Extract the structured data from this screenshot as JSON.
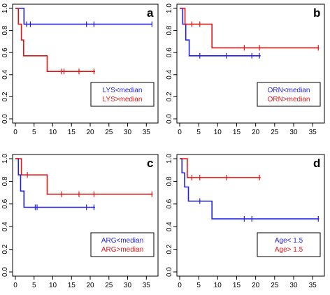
{
  "colors": {
    "blue": "#1f1fe6",
    "red": "#e01515",
    "axis": "#000000"
  },
  "chart_data": [
    {
      "panel": "a",
      "type": "line",
      "step": true,
      "xlim": [
        0,
        37
      ],
      "ylim": [
        0,
        1
      ],
      "x_ticks": [
        0,
        5,
        10,
        15,
        20,
        25,
        30,
        35
      ],
      "y_ticks": [
        0.0,
        0.2,
        0.4,
        0.6,
        0.8,
        1.0
      ],
      "legend_position": "bottom-right",
      "series": [
        {
          "name": "LYS<median",
          "color": "blue",
          "steps": [
            [
              0,
              1.0
            ],
            [
              2.3,
              0.857
            ],
            [
              36.5,
              0.857
            ]
          ],
          "censored": [
            [
              3,
              0.857
            ],
            [
              4,
              0.857
            ],
            [
              19,
              0.857
            ],
            [
              21,
              0.857
            ],
            [
              36.5,
              0.857
            ]
          ]
        },
        {
          "name": "LYS>median",
          "color": "red",
          "steps": [
            [
              0,
              1.0
            ],
            [
              0.8,
              0.857
            ],
            [
              1.6,
              0.714
            ],
            [
              2.2,
              0.571
            ],
            [
              8.5,
              0.429
            ],
            [
              21.3,
              0.429
            ]
          ],
          "censored": [
            [
              12.3,
              0.429
            ],
            [
              13,
              0.429
            ],
            [
              17,
              0.429
            ],
            [
              21,
              0.429
            ]
          ]
        }
      ]
    },
    {
      "panel": "b",
      "type": "line",
      "step": true,
      "xlim": [
        0,
        37
      ],
      "ylim": [
        0,
        1
      ],
      "x_ticks": [
        0,
        5,
        10,
        15,
        20,
        25,
        30,
        35
      ],
      "y_ticks": [
        0.0,
        0.2,
        0.4,
        0.6,
        0.8,
        1.0
      ],
      "legend_position": "bottom-right",
      "series": [
        {
          "name": "ORN<median",
          "color": "blue",
          "steps": [
            [
              0,
              1.0
            ],
            [
              0.8,
              0.857
            ],
            [
              1.6,
              0.714
            ],
            [
              2.5,
              0.571
            ],
            [
              21.3,
              0.571
            ]
          ],
          "censored": [
            [
              5.3,
              0.571
            ],
            [
              12.3,
              0.571
            ],
            [
              19,
              0.571
            ],
            [
              21,
              0.571
            ]
          ]
        },
        {
          "name": "ORN>median",
          "color": "red",
          "steps": [
            [
              0,
              1.0
            ],
            [
              1.4,
              0.857
            ],
            [
              8.5,
              0.643
            ],
            [
              36.7,
              0.643
            ]
          ],
          "censored": [
            [
              3.2,
              0.857
            ],
            [
              5.3,
              0.857
            ],
            [
              17,
              0.643
            ],
            [
              21,
              0.643
            ],
            [
              36.5,
              0.643
            ]
          ]
        }
      ]
    },
    {
      "panel": "c",
      "type": "line",
      "step": true,
      "xlim": [
        0,
        37
      ],
      "ylim": [
        0,
        1
      ],
      "x_ticks": [
        0,
        5,
        10,
        15,
        20,
        25,
        30,
        35
      ],
      "y_ticks": [
        0.0,
        0.2,
        0.4,
        0.6,
        0.8,
        1.0
      ],
      "legend_position": "bottom-right",
      "series": [
        {
          "name": "ARG<median",
          "color": "blue",
          "steps": [
            [
              0,
              1.0
            ],
            [
              0.8,
              0.857
            ],
            [
              1.4,
              0.714
            ],
            [
              2.3,
              0.571
            ],
            [
              21.3,
              0.571
            ]
          ],
          "censored": [
            [
              5.3,
              0.571
            ],
            [
              5.8,
              0.571
            ],
            [
              19,
              0.571
            ],
            [
              21,
              0.571
            ]
          ]
        },
        {
          "name": "ARG>median",
          "color": "red",
          "steps": [
            [
              0,
              1.0
            ],
            [
              1.6,
              0.857
            ],
            [
              8.5,
              0.686
            ],
            [
              36.7,
              0.686
            ]
          ],
          "censored": [
            [
              3.2,
              0.857
            ],
            [
              12.3,
              0.686
            ],
            [
              17,
              0.686
            ],
            [
              21,
              0.686
            ],
            [
              36.5,
              0.686
            ]
          ]
        }
      ]
    },
    {
      "panel": "d",
      "type": "line",
      "step": true,
      "xlim": [
        0,
        37
      ],
      "ylim": [
        0,
        1
      ],
      "x_ticks": [
        0,
        5,
        10,
        15,
        20,
        25,
        30,
        35
      ],
      "y_ticks": [
        0.0,
        0.2,
        0.4,
        0.6,
        0.8,
        1.0
      ],
      "legend_position": "bottom-right",
      "series": [
        {
          "name": "Age< 1.5",
          "color": "blue",
          "steps": [
            [
              0,
              1.0
            ],
            [
              0.6,
              0.875
            ],
            [
              1.3,
              0.75
            ],
            [
              2.3,
              0.625
            ],
            [
              8.5,
              0.469
            ],
            [
              36.7,
              0.469
            ]
          ],
          "censored": [
            [
              5.3,
              0.625
            ],
            [
              17,
              0.469
            ],
            [
              19,
              0.469
            ],
            [
              36.5,
              0.469
            ]
          ]
        },
        {
          "name": "Age> 1.5",
          "color": "red",
          "steps": [
            [
              0,
              1.0
            ],
            [
              2.0,
              0.833
            ],
            [
              21.3,
              0.833
            ]
          ],
          "censored": [
            [
              3.2,
              0.833
            ],
            [
              5.3,
              0.833
            ],
            [
              12.3,
              0.833
            ],
            [
              21,
              0.833
            ]
          ]
        }
      ]
    }
  ]
}
